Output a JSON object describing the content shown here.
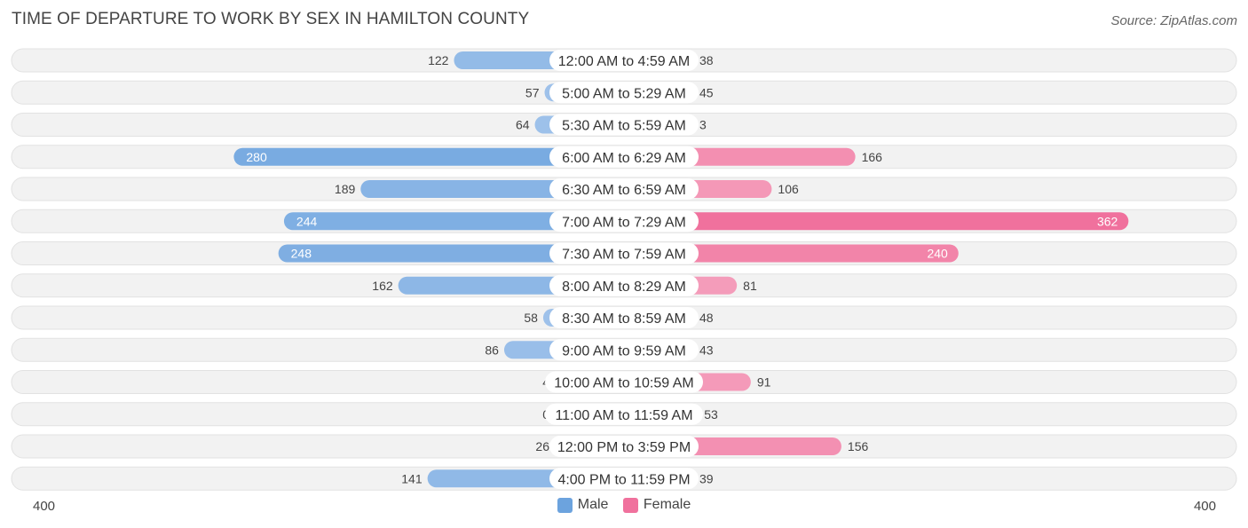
{
  "header": {
    "title": "TIME OF DEPARTURE TO WORK BY SEX IN HAMILTON COUNTY",
    "source": "Source: ZipAtlas.com"
  },
  "colors": {
    "male_light": "#a7c7ec",
    "male_dark": "#6ca3de",
    "female_light": "#f5a8c2",
    "female_dark": "#f0719d",
    "row_bg": "#f2f2f2",
    "row_border": "#e2e2e2"
  },
  "chart_data": {
    "type": "bar",
    "orientation": "horizontal-diverging",
    "categories": [
      "12:00 AM to 4:59 AM",
      "5:00 AM to 5:29 AM",
      "5:30 AM to 5:59 AM",
      "6:00 AM to 6:29 AM",
      "6:30 AM to 6:59 AM",
      "7:00 AM to 7:29 AM",
      "7:30 AM to 7:59 AM",
      "8:00 AM to 8:29 AM",
      "8:30 AM to 8:59 AM",
      "9:00 AM to 9:59 AM",
      "10:00 AM to 10:59 AM",
      "11:00 AM to 11:59 AM",
      "12:00 PM to 3:59 PM",
      "4:00 PM to 11:59 PM"
    ],
    "series": [
      {
        "name": "Male",
        "values": [
          122,
          57,
          64,
          280,
          189,
          244,
          248,
          162,
          58,
          86,
          4,
          0,
          26,
          141
        ]
      },
      {
        "name": "Female",
        "values": [
          38,
          45,
          3,
          166,
          106,
          362,
          240,
          81,
          48,
          43,
          91,
          53,
          156,
          39
        ]
      }
    ],
    "axis": {
      "min_label": "400",
      "max_label": "400",
      "max": 400
    },
    "legend_position": "bottom-center"
  }
}
